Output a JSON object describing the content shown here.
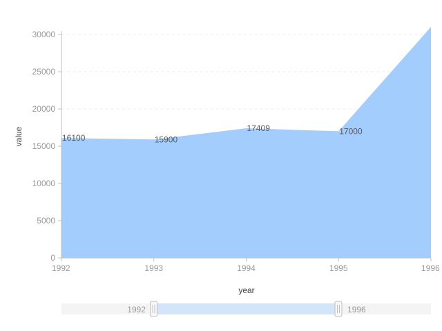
{
  "chart_data": {
    "type": "area",
    "x": [
      "1992",
      "1993",
      "1994",
      "1995",
      "1996"
    ],
    "series": [
      {
        "values": [
          16100,
          15900,
          17409,
          17000,
          31056
        ]
      }
    ],
    "data_labels": [
      "16100",
      "15900",
      "17409",
      "17000",
      ""
    ],
    "xlabel": "year",
    "ylabel": "value",
    "ylim": [
      0,
      30000
    ],
    "yticks": [
      "0",
      "5000",
      "10000",
      "15000",
      "20000",
      "25000",
      "30000"
    ],
    "xticks": [
      "1992",
      "1993",
      "1994",
      "1995",
      "1996"
    ],
    "grid": true,
    "area_color": "#a3cdfd",
    "slider": {
      "start_label": "1992",
      "end_label": "1996",
      "selected_range": [
        "1992",
        "1996"
      ]
    }
  }
}
